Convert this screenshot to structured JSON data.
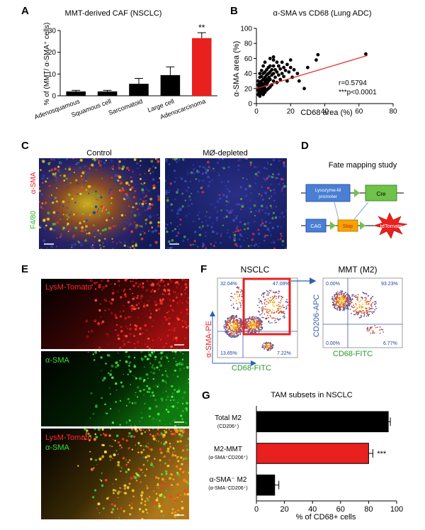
{
  "panels": {
    "A": {
      "label": "A",
      "title": "MMT-derived CAF (NSCLC)",
      "ylabel": "% of (MMT/ α-SMA⁺ cells)",
      "significance": "**"
    },
    "B": {
      "label": "B",
      "title": "α-SMA vs CD68 (Lung ADC)",
      "xlabel": "CD68 area (%)",
      "ylabel": "α-SMA area (%)",
      "stat_r": "r=0.5794",
      "stat_p": "***p<0.0001"
    },
    "C": {
      "label": "C",
      "col1": "Control",
      "col2": "MØ-depleted",
      "stain_red": "α-SMA",
      "stain_green": "F4/80"
    },
    "D": {
      "label": "D",
      "title": "Fate mapping study",
      "box_promoter_1": "Lysozyme-M",
      "box_promoter_2": "promoter",
      "box_cre": "Cre",
      "box_cag": "CAG",
      "box_stop": "Stop",
      "box_tdtomato": "tdTomato"
    },
    "E": {
      "label": "E",
      "img1": "LysM-Tomato",
      "img2": "α-SMA",
      "img3_a": "LysM-Tomato",
      "img3_b": "α-SMA"
    },
    "F": {
      "label": "F",
      "plot1_title": "NSCLC",
      "plot1_q_tl": "32.04%",
      "plot1_q_tr": "47.09%",
      "plot1_q_bl": "13.65%",
      "plot1_q_br": "7.22%",
      "plot1_ylabel": "α-SMA-PE",
      "plot1_xlabel": "CD68-FITC",
      "plot2_title": "MMT (M2)",
      "plot2_q_tl": "0.00%",
      "plot2_q_tr": "93.23%",
      "plot2_q_bl": "0.00%",
      "plot2_q_br": "6.77%",
      "plot2_ylabel": "CD206-APC",
      "plot2_xlabel": "CD68-FITC"
    },
    "G": {
      "label": "G",
      "title": "TAM subsets in NSCLC",
      "xlabel": "% of CD68+ cells",
      "cat1": "Total M2",
      "cat1_sub": "(CD206⁺)",
      "cat2": "M2-MMT",
      "cat2_sub": "(α-SMA⁺CD206⁺)",
      "cat3": "α-SMA⁻ M2",
      "cat3_sub": "(α-SMA⁻CD206⁺)",
      "significance": "***"
    }
  },
  "chart_data": [
    {
      "id": "A",
      "type": "bar",
      "title": "MMT-derived CAF (NSCLC)",
      "categories": [
        "Adenosquamous",
        "Squamous cell",
        "Sarcomatoid",
        "Large cell",
        "Adenocarcinoma"
      ],
      "values": [
        2.0,
        2.0,
        5.5,
        9.5,
        26.5
      ],
      "errors": [
        0.5,
        0.5,
        2.5,
        3.8,
        2.5
      ],
      "bar_colors": [
        "#000000",
        "#000000",
        "#000000",
        "#000000",
        "#e8201e"
      ],
      "ylabel": "% of (MMT/ α-SMA⁺ cells)",
      "ylim": [
        0,
        30
      ],
      "yticks": [
        0,
        10,
        20,
        30
      ]
    },
    {
      "id": "B",
      "type": "scatter",
      "title": "α-SMA vs CD68 (Lung ADC)",
      "xlabel": "CD68 area (%)",
      "ylabel": "α-SMA area (%)",
      "xlim": [
        0,
        80
      ],
      "ylim": [
        0,
        100
      ],
      "xticks": [
        0,
        20,
        40,
        60,
        80
      ],
      "yticks": [
        0,
        20,
        40,
        60,
        80,
        100
      ],
      "fit": {
        "x": [
          0,
          65
        ],
        "y": [
          20,
          64
        ],
        "color": "#e8201e"
      },
      "points": [
        [
          1,
          12
        ],
        [
          1,
          18
        ],
        [
          1,
          25
        ],
        [
          1,
          30
        ],
        [
          1.5,
          15
        ],
        [
          1.5,
          22
        ],
        [
          2,
          10
        ],
        [
          2,
          16
        ],
        [
          2,
          20
        ],
        [
          2,
          28
        ],
        [
          2,
          35
        ],
        [
          2,
          40
        ],
        [
          2.5,
          13
        ],
        [
          2.5,
          24
        ],
        [
          3,
          14
        ],
        [
          3,
          18
        ],
        [
          3,
          22
        ],
        [
          3,
          30
        ],
        [
          3,
          36
        ],
        [
          3,
          44
        ],
        [
          3.5,
          20
        ],
        [
          3.5,
          26
        ],
        [
          4,
          12
        ],
        [
          4,
          17
        ],
        [
          4,
          25
        ],
        [
          4,
          32
        ],
        [
          4,
          40
        ],
        [
          4,
          50
        ],
        [
          4.5,
          22
        ],
        [
          5,
          15
        ],
        [
          5,
          20
        ],
        [
          5,
          28
        ],
        [
          5,
          35
        ],
        [
          5,
          42
        ],
        [
          5,
          55
        ],
        [
          5.5,
          30
        ],
        [
          6,
          18
        ],
        [
          6,
          25
        ],
        [
          6,
          33
        ],
        [
          6,
          38
        ],
        [
          6,
          45
        ],
        [
          6.5,
          28
        ],
        [
          7,
          20
        ],
        [
          7,
          30
        ],
        [
          7,
          40
        ],
        [
          7,
          48
        ],
        [
          7.5,
          35
        ],
        [
          8,
          22
        ],
        [
          8,
          32
        ],
        [
          8,
          42
        ],
        [
          8,
          50
        ],
        [
          8,
          60
        ],
        [
          9,
          25
        ],
        [
          9,
          38
        ],
        [
          9,
          45
        ],
        [
          10,
          30
        ],
        [
          10,
          40
        ],
        [
          10,
          50
        ],
        [
          10,
          58
        ],
        [
          10,
          62
        ],
        [
          11,
          35
        ],
        [
          11,
          45
        ],
        [
          12,
          28
        ],
        [
          12,
          42
        ],
        [
          12,
          55
        ],
        [
          13,
          38
        ],
        [
          13,
          50
        ],
        [
          14,
          32
        ],
        [
          14,
          46
        ],
        [
          15,
          40
        ],
        [
          15,
          55
        ],
        [
          16,
          36
        ],
        [
          16,
          48
        ],
        [
          17,
          44
        ],
        [
          18,
          30
        ],
        [
          18,
          52
        ],
        [
          19,
          42
        ],
        [
          20,
          48
        ],
        [
          20,
          58
        ],
        [
          21,
          35
        ],
        [
          22,
          45
        ],
        [
          24,
          40
        ],
        [
          25,
          30
        ],
        [
          28,
          20
        ],
        [
          30,
          48
        ],
        [
          35,
          58
        ],
        [
          36,
          65
        ],
        [
          64,
          66
        ]
      ],
      "annotations": [
        "r=0.5794",
        "***p<0.0001"
      ]
    },
    {
      "id": "G",
      "type": "bar",
      "orientation": "horizontal",
      "title": "TAM subsets in NSCLC",
      "categories": [
        "Total M2 (CD206⁺)",
        "M2-MMT (α-SMA⁺CD206⁺)",
        "α-SMA⁻ M2 (α-SMA⁻CD206⁺)"
      ],
      "values": [
        94,
        80,
        13
      ],
      "errors": [
        1.5,
        3,
        3
      ],
      "bar_colors": [
        "#000000",
        "#e8201e",
        "#000000"
      ],
      "xlabel": "% of CD68+ cells",
      "xlim": [
        0,
        100
      ],
      "xticks": [
        0,
        20,
        40,
        60,
        80,
        100
      ]
    }
  ]
}
